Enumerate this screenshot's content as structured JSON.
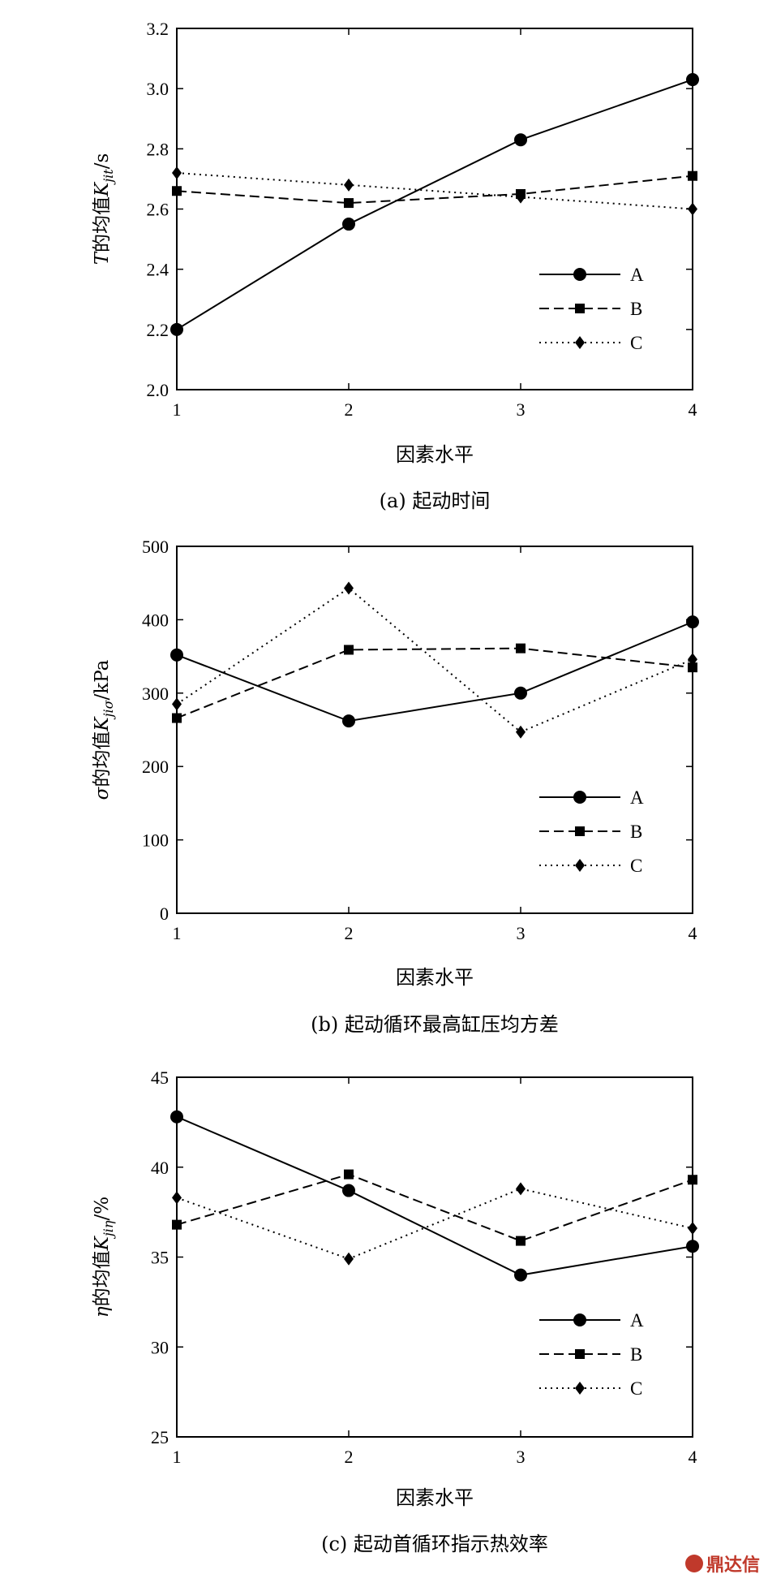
{
  "watermark": "鼎达信",
  "chart_data": [
    {
      "type": "line",
      "panel": "a",
      "caption": "(a) 起动时间",
      "xlabel": "因素水平",
      "ylabel_prefix": "T",
      "ylabel_main": "的均值",
      "ylabel_var": "K",
      "ylabel_sub": "jit",
      "ylabel_unit": "/s",
      "x": [
        1,
        2,
        3,
        4
      ],
      "xlim": [
        1,
        4
      ],
      "ylim": [
        2.0,
        3.2
      ],
      "yticks": [
        "2.0",
        "2.2",
        "2.4",
        "2.6",
        "2.8",
        "3.0",
        "3.2"
      ],
      "yticks_values": [
        2.0,
        2.2,
        2.4,
        2.6,
        2.8,
        3.0,
        3.2
      ],
      "xticks": [
        "1",
        "2",
        "3",
        "4"
      ],
      "legend_position": "lower-right",
      "series": [
        {
          "name": "A",
          "values": [
            2.2,
            2.55,
            2.83,
            3.03
          ],
          "marker": "circle",
          "dash": "solid"
        },
        {
          "name": "B",
          "values": [
            2.66,
            2.62,
            2.65,
            2.71
          ],
          "marker": "square",
          "dash": "dashed"
        },
        {
          "name": "C",
          "values": [
            2.72,
            2.68,
            2.64,
            2.6
          ],
          "marker": "diamond",
          "dash": "dotted"
        }
      ]
    },
    {
      "type": "line",
      "panel": "b",
      "caption": "(b) 起动循环最高缸压均方差",
      "xlabel": "因素水平",
      "ylabel_prefix": "σ",
      "ylabel_main": "的均值",
      "ylabel_var": "K",
      "ylabel_sub": "jiσ",
      "ylabel_unit": "/kPa",
      "x": [
        1,
        2,
        3,
        4
      ],
      "xlim": [
        1,
        4
      ],
      "ylim": [
        0,
        500
      ],
      "yticks": [
        "0",
        "100",
        "200",
        "300",
        "400",
        "500"
      ],
      "yticks_values": [
        0,
        100,
        200,
        300,
        400,
        500
      ],
      "xticks": [
        "1",
        "2",
        "3",
        "4"
      ],
      "legend_position": "lower-right",
      "series": [
        {
          "name": "A",
          "values": [
            352,
            262,
            300,
            397
          ],
          "marker": "circle",
          "dash": "solid"
        },
        {
          "name": "B",
          "values": [
            266,
            359,
            361,
            335
          ],
          "marker": "square",
          "dash": "dashed"
        },
        {
          "name": "C",
          "values": [
            285,
            443,
            247,
            346
          ],
          "marker": "diamond",
          "dash": "dotted"
        }
      ]
    },
    {
      "type": "line",
      "panel": "c",
      "caption": "(c) 起动首循环指示热效率",
      "xlabel": "因素水平",
      "ylabel_prefix": "η",
      "ylabel_main": "的均值",
      "ylabel_var": "K",
      "ylabel_sub": "jiη",
      "ylabel_unit": "/%",
      "x": [
        1,
        2,
        3,
        4
      ],
      "xlim": [
        1,
        4
      ],
      "ylim": [
        25,
        45
      ],
      "yticks": [
        "25",
        "30",
        "35",
        "40",
        "45"
      ],
      "yticks_values": [
        25,
        30,
        35,
        40,
        45
      ],
      "xticks": [
        "1",
        "2",
        "3",
        "4"
      ],
      "legend_position": "lower-right",
      "series": [
        {
          "name": "A",
          "values": [
            42.8,
            38.7,
            34.0,
            35.6
          ],
          "marker": "circle",
          "dash": "solid"
        },
        {
          "name": "B",
          "values": [
            36.8,
            39.6,
            35.9,
            39.3
          ],
          "marker": "square",
          "dash": "dashed"
        },
        {
          "name": "C",
          "values": [
            38.3,
            34.9,
            38.8,
            36.6
          ],
          "marker": "diamond",
          "dash": "dotted"
        }
      ]
    }
  ]
}
